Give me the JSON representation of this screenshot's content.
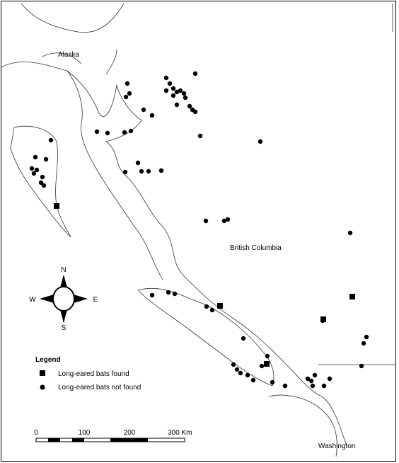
{
  "map": {
    "places": {
      "alaska": "Alaska",
      "british_columbia": "British Columbia",
      "washington": "Washington"
    },
    "compass": {
      "north": "N",
      "south": "S",
      "east": "E",
      "west": "W"
    },
    "legend": {
      "title": "Legend",
      "items": [
        "Long-eared bats found",
        "Long-eared bats not found"
      ]
    },
    "scale_bar": {
      "labels": [
        "0",
        "100",
        "200",
        "300 Km"
      ]
    }
  }
}
